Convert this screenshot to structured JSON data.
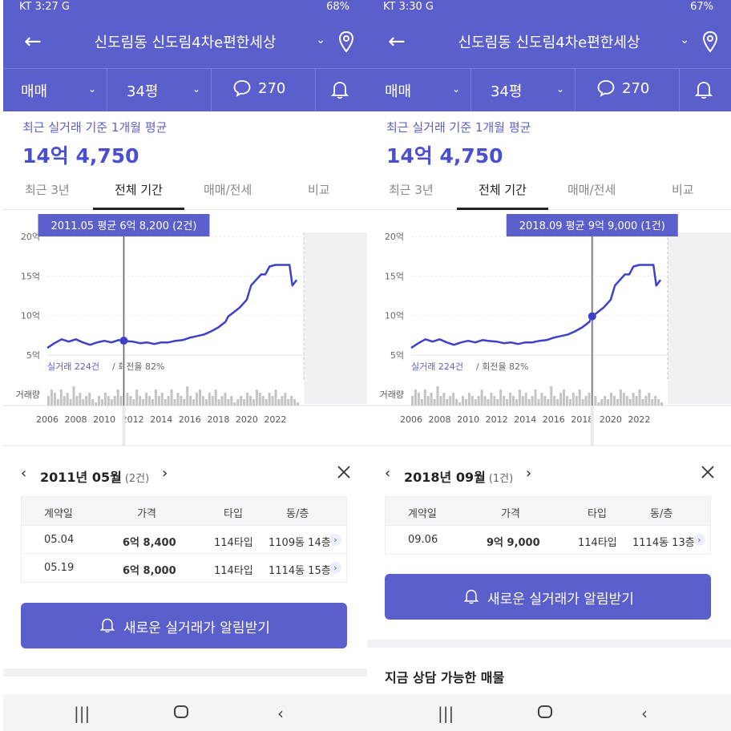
{
  "panels": [
    {
      "status": {
        "left": "KT 3:27 G",
        "right": "68%"
      },
      "header": {
        "title": "신도림동 신도림4차e편한세상"
      },
      "filters": {
        "type": "매매",
        "size": "34평",
        "comments": "270"
      },
      "summary": {
        "label": "최근 실거래 기준 1개월 평균",
        "price": "14억 4,750"
      },
      "tabs": [
        "최근 3년",
        "전체 기간",
        "매매/전세",
        "비교"
      ],
      "active_tab": 1,
      "chart": {
        "tooltip": "2011.05 평균 6억 8,200 (2건)",
        "yticks": [
          "20억",
          "15억",
          "10억",
          "5억"
        ],
        "xticks": [
          "2006",
          "2008",
          "2010",
          "2012",
          "2014",
          "2016",
          "2018",
          "2020",
          "2022"
        ],
        "trade_count": "실거래 224건",
        "turnover": "/ 회전율 82%",
        "volume_label": "거래량",
        "cursor_year": 2011.37,
        "cursor_value": 6.82
      },
      "detail": {
        "month": "2011년 05월",
        "count": "(2건)",
        "headers": [
          "계약일",
          "가격",
          "타입",
          "동/층"
        ],
        "rows": [
          {
            "date": "05.04",
            "price": "6억 8,400",
            "type": "114타입",
            "unit": "1109동 14층"
          },
          {
            "date": "05.19",
            "price": "6억 8,000",
            "type": "114타입",
            "unit": "1114동 15층"
          }
        ]
      },
      "alert_label": "새로운 실거래가 알림받기"
    },
    {
      "status": {
        "left": "KT 3:30 G",
        "right": "67%"
      },
      "header": {
        "title": "신도림동 신도림4차e편한세상"
      },
      "filters": {
        "type": "매매",
        "size": "34평",
        "comments": "270"
      },
      "summary": {
        "label": "최근 실거래 기준 1개월 평균",
        "price": "14억 4,750"
      },
      "tabs": [
        "최근 3년",
        "전체 기간",
        "매매/전세",
        "비교"
      ],
      "active_tab": 1,
      "chart": {
        "tooltip": "2018.09 평균 9억 9,000 (1건)",
        "yticks": [
          "20억",
          "15억",
          "10억",
          "5억"
        ],
        "xticks": [
          "2006",
          "2008",
          "2010",
          "2012",
          "2014",
          "2016",
          "2018",
          "2020",
          "2022"
        ],
        "trade_count": "실거래 224건",
        "turnover": "/ 회전율 82%",
        "volume_label": "거래량",
        "cursor_year": 2018.7,
        "cursor_value": 9.9
      },
      "detail": {
        "month": "2018년 09월",
        "count": "(1건)",
        "headers": [
          "계약일",
          "가격",
          "타입",
          "동/층"
        ],
        "rows": [
          {
            "date": "09.06",
            "price": "9억 9,000",
            "type": "114타입",
            "unit": "1114동 13층"
          }
        ]
      },
      "alert_label": "새로운 실거래가 알림받기",
      "section_title": "지금 상담 가능한 매물"
    }
  ],
  "colors": {
    "primary": "#5b5fcb",
    "line": "#3d40c8",
    "tooltip": "#5b5fcb"
  },
  "chart_data": {
    "type": "line",
    "x_unit": "year",
    "y_unit": "억",
    "ylim": [
      5,
      20
    ],
    "xlim": [
      2006,
      2024
    ],
    "series": [
      {
        "x": [
          2006.0,
          2006.5,
          2007.0,
          2007.5,
          2008.0,
          2008.5,
          2009.0,
          2009.5,
          2010.0,
          2010.5,
          2011.0,
          2011.4,
          2012.0,
          2012.5,
          2013.0,
          2013.5,
          2014.0,
          2014.5,
          2015.0,
          2015.5,
          2016.0,
          2016.5,
          2017.0,
          2017.5,
          2018.0,
          2018.5,
          2018.7,
          2019.0,
          2019.5,
          2020.0,
          2020.3,
          2020.7,
          2021.0,
          2021.3,
          2021.6,
          2022.0,
          2022.5,
          2023.0,
          2023.2,
          2023.5
        ],
        "y": [
          5.9,
          6.5,
          7.0,
          6.7,
          7.0,
          6.6,
          6.3,
          6.6,
          6.8,
          6.6,
          6.9,
          6.8,
          6.7,
          6.5,
          6.6,
          6.4,
          6.6,
          6.6,
          6.8,
          6.9,
          7.2,
          7.4,
          7.6,
          8.0,
          8.5,
          9.2,
          9.9,
          10.3,
          11.0,
          12.0,
          13.8,
          14.6,
          15.2,
          15.2,
          16.2,
          16.4,
          16.4,
          16.4,
          13.8,
          14.5
        ]
      }
    ],
    "volume": [
      3,
      5,
      4,
      2,
      5,
      3,
      4,
      2,
      6,
      3,
      4,
      2,
      3,
      4,
      2,
      1,
      3,
      2,
      4,
      3,
      2,
      3,
      5,
      3,
      2,
      4,
      3,
      2,
      5,
      3,
      2,
      4,
      3,
      2,
      5,
      3,
      4,
      2,
      3,
      5,
      2,
      4,
      3,
      2,
      6,
      3,
      2,
      4,
      5,
      3,
      2,
      4,
      3,
      5,
      2,
      3,
      4,
      2,
      3,
      1,
      2,
      3,
      2,
      4,
      3,
      2,
      5,
      4,
      3,
      2,
      4,
      3,
      5,
      2,
      3,
      4,
      2,
      3,
      2,
      1
    ]
  }
}
